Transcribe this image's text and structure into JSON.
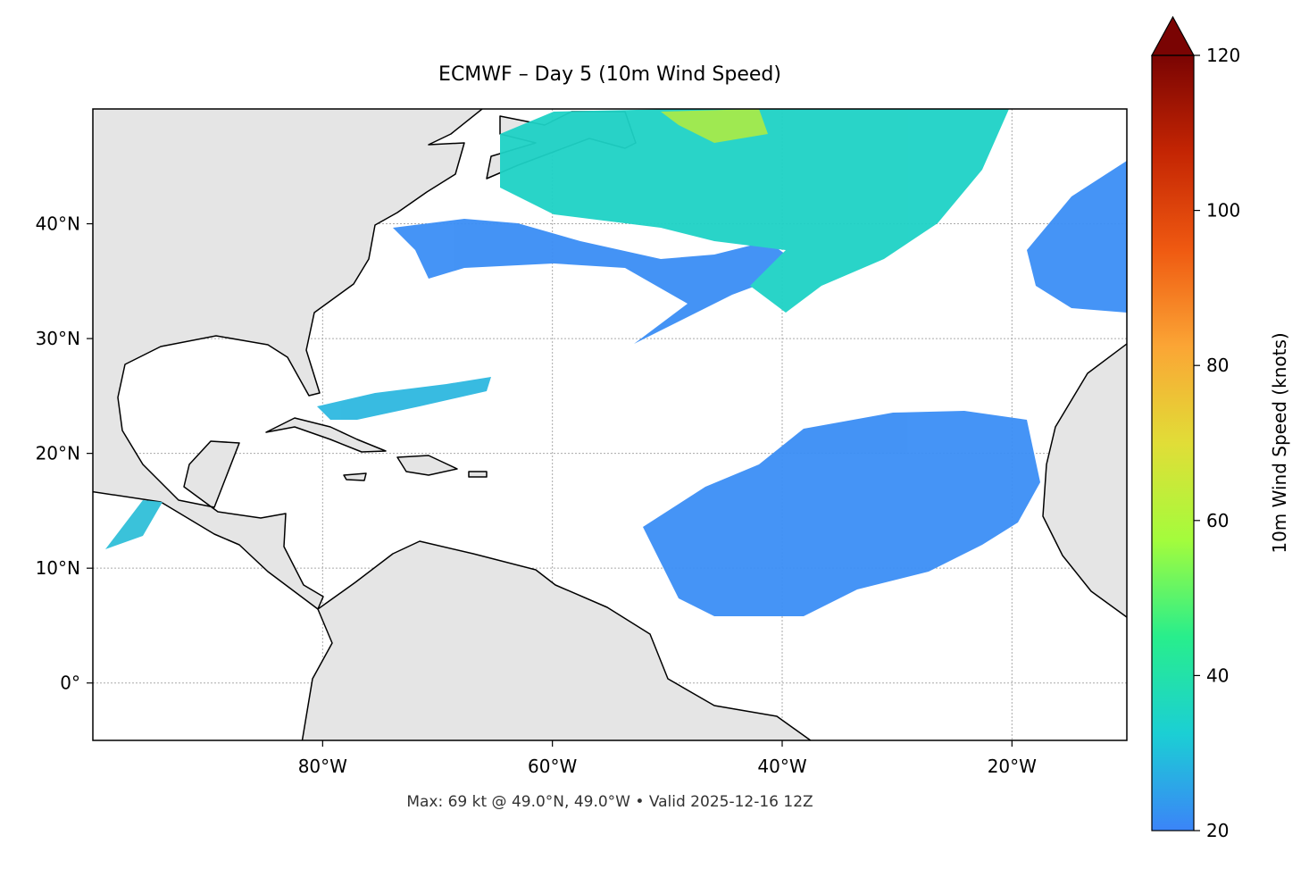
{
  "chart_data": {
    "type": "map",
    "title": "ECMWF – Day 5 (10m Wind Speed)",
    "footnote": "Max: 69 kt @ 49.0°N, 49.0°W • Valid 2025-12-16 12Z",
    "xlim": [
      -100,
      -10
    ],
    "ylim": [
      -5,
      50
    ],
    "xticks": [
      {
        "value": -80,
        "label": "80°W"
      },
      {
        "value": -60,
        "label": "60°W"
      },
      {
        "value": -40,
        "label": "40°W"
      },
      {
        "value": -20,
        "label": "20°W"
      }
    ],
    "yticks": [
      {
        "value": 0,
        "label": "0°"
      },
      {
        "value": 10,
        "label": "10°N"
      },
      {
        "value": 20,
        "label": "20°N"
      },
      {
        "value": 30,
        "label": "30°N"
      },
      {
        "value": 40,
        "label": "40°N"
      }
    ],
    "grid": true,
    "colorbar": {
      "label": "10m Wind Speed (knots)",
      "lim": [
        20,
        120
      ],
      "ticks": [
        20,
        40,
        60,
        80,
        100,
        120
      ],
      "extend": "max",
      "colors": [
        "#3b84f8",
        "#1bcfd4",
        "#28ee8c",
        "#a4fc3c",
        "#e1dd37",
        "#fba535",
        "#ef5911",
        "#c42503",
        "#7a0403"
      ]
    }
  }
}
